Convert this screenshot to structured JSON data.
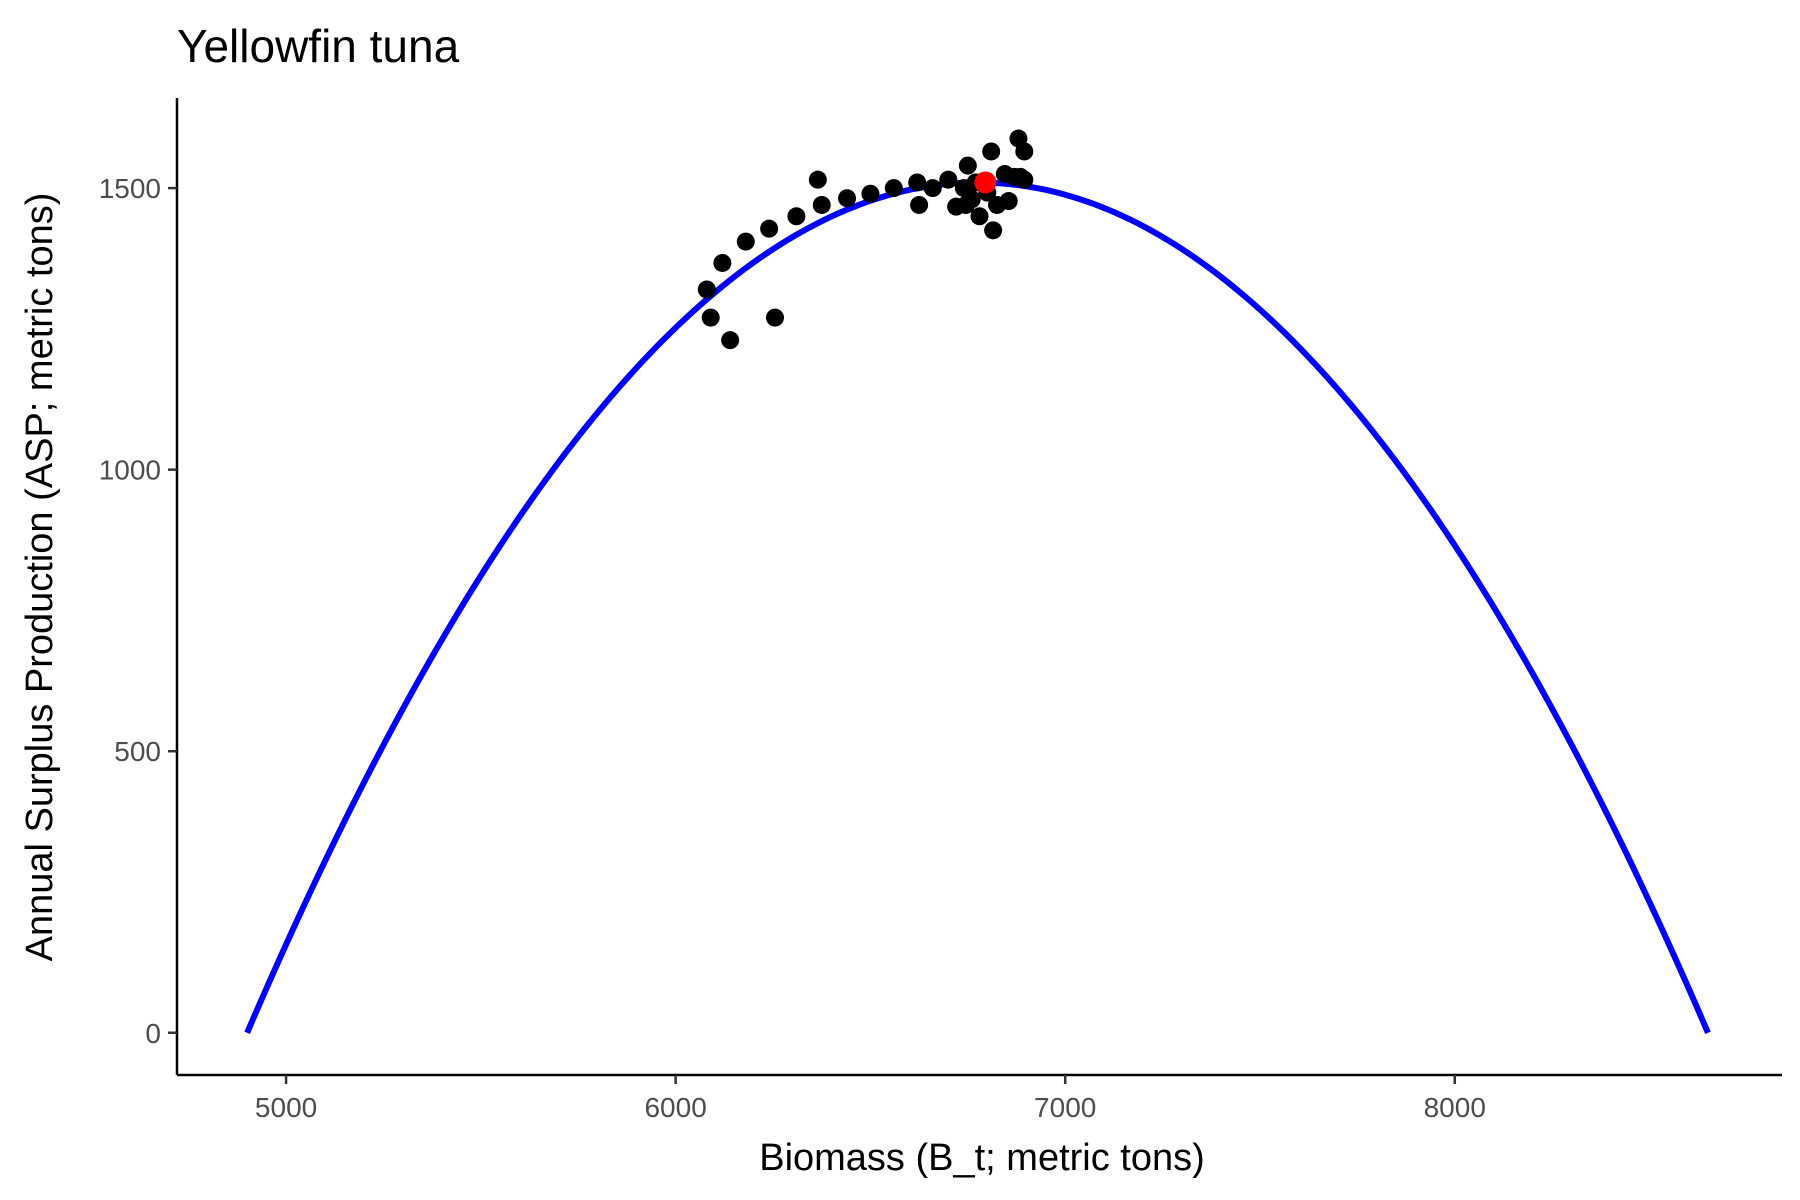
{
  "chart_data": {
    "type": "scatter",
    "title": "Yellowfin tuna",
    "xlabel": "Biomass (B_t; metric tons)",
    "ylabel": "Annual Surplus Production (ASP; metric tons)",
    "xlim": [
      4720,
      8840
    ],
    "ylim": [
      -75,
      1660
    ],
    "xticks": [
      5000,
      6000,
      7000,
      8000
    ],
    "yticks": [
      0,
      500,
      1000,
      1500
    ],
    "grid": false,
    "legend": "none",
    "colors": {
      "curve": "#0000ff",
      "points": "#000000",
      "highlight": "#ff0000",
      "axis": "#000000"
    },
    "series": [
      {
        "type": "line",
        "curve": {
          "b_min": 4900,
          "b_max": 8650,
          "peak_b": 6775,
          "peak_asp": 1510
        }
      },
      {
        "type": "scatter",
        "points": [
          [
            6080,
            1320
          ],
          [
            6090,
            1270
          ],
          [
            6120,
            1367
          ],
          [
            6140,
            1230
          ],
          [
            6180,
            1405
          ],
          [
            6240,
            1428
          ],
          [
            6255,
            1270
          ],
          [
            6310,
            1450
          ],
          [
            6365,
            1515
          ],
          [
            6375,
            1470
          ],
          [
            6440,
            1482
          ],
          [
            6500,
            1490
          ],
          [
            6560,
            1500
          ],
          [
            6620,
            1510
          ],
          [
            6625,
            1470
          ],
          [
            6660,
            1500
          ],
          [
            6700,
            1515
          ],
          [
            6720,
            1467
          ],
          [
            6740,
            1500
          ],
          [
            6745,
            1470
          ],
          [
            6750,
            1540
          ],
          [
            6760,
            1480
          ],
          [
            6770,
            1510
          ],
          [
            6780,
            1450
          ],
          [
            6800,
            1492
          ],
          [
            6810,
            1565
          ],
          [
            6815,
            1425
          ],
          [
            6825,
            1470
          ],
          [
            6845,
            1525
          ],
          [
            6855,
            1477
          ],
          [
            6870,
            1520
          ],
          [
            6880,
            1588
          ],
          [
            6885,
            1520
          ],
          [
            6895,
            1565
          ],
          [
            6895,
            1515
          ]
        ]
      },
      {
        "type": "scatter",
        "points": [
          [
            6795,
            1510
          ]
        ]
      }
    ]
  }
}
